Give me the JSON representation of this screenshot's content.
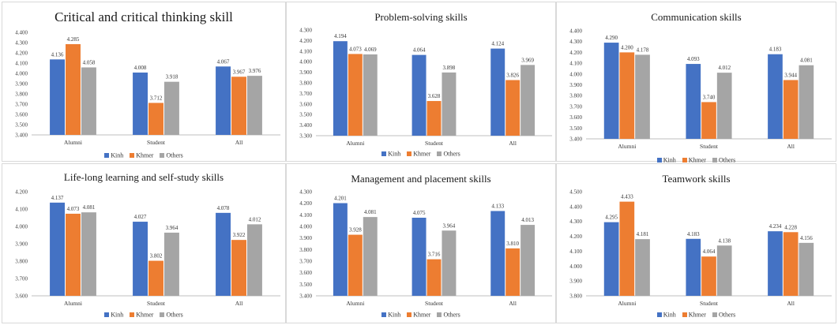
{
  "chart_data": [
    {
      "type": "bar",
      "title": "Critical and critical thinking skill",
      "categories": [
        "Alumni",
        "Student",
        "All"
      ],
      "series": [
        {
          "name": "Kinh",
          "values": [
            4.136,
            4.008,
            4.067
          ],
          "labels": [
            "4.136",
            "4.008",
            "4.067"
          ]
        },
        {
          "name": "Khmer",
          "values": [
            4.285,
            3.712,
            3.967
          ],
          "labels": [
            "4.285",
            "3.712",
            "3.967"
          ]
        },
        {
          "name": "Others",
          "values": [
            4.058,
            3.918,
            3.976
          ],
          "labels": [
            "4.058",
            "3.918",
            "3.976"
          ]
        }
      ],
      "ylim": [
        3.4,
        4.4
      ],
      "yticks": [
        "3.400",
        "3.500",
        "3.600",
        "3.700",
        "3.800",
        "3.900",
        "4.000",
        "4.100",
        "4.200",
        "4.300",
        "4.400"
      ],
      "legend": "bottom",
      "grid": false
    },
    {
      "type": "bar",
      "title": "Problem-solving  skills",
      "categories": [
        "Alumni",
        "Student",
        "All"
      ],
      "series": [
        {
          "name": "Kinh",
          "values": [
            4.194,
            4.064,
            4.124
          ],
          "labels": [
            "4.194",
            "4.064",
            "4.124"
          ]
        },
        {
          "name": "Khmer",
          "values": [
            4.073,
            3.628,
            3.826
          ],
          "labels": [
            "4.073",
            "3.628",
            "3.826"
          ]
        },
        {
          "name": "Others",
          "values": [
            4.069,
            3.898,
            3.969
          ],
          "labels": [
            "4.069",
            "3.898",
            "3.969"
          ]
        }
      ],
      "ylim": [
        3.3,
        4.3
      ],
      "yticks": [
        "3.300",
        "3.400",
        "3.500",
        "3.600",
        "3.700",
        "3.800",
        "3.900",
        "4.000",
        "4.100",
        "4.200",
        "4.300"
      ],
      "legend": "bottom",
      "grid": false
    },
    {
      "type": "bar",
      "title": "Communication  skills",
      "categories": [
        "Alumni",
        "Student",
        "All"
      ],
      "series": [
        {
          "name": "Kinh",
          "values": [
            4.29,
            4.093,
            4.183
          ],
          "labels": [
            "4.290",
            "4.093",
            "4.183"
          ]
        },
        {
          "name": "Khmer",
          "values": [
            4.2,
            3.74,
            3.944
          ],
          "labels": [
            "4.200",
            "3.740",
            "3.944"
          ]
        },
        {
          "name": "Others",
          "values": [
            4.178,
            4.012,
            4.081
          ],
          "labels": [
            "4.178",
            "4.012",
            "4.081"
          ]
        }
      ],
      "ylim": [
        3.4,
        4.4
      ],
      "yticks": [
        "3.400",
        "3.500",
        "3.600",
        "3.700",
        "3.800",
        "3.900",
        "4.000",
        "4.100",
        "4.200",
        "4.300",
        "4.400"
      ],
      "legend": "bottom",
      "grid": false
    },
    {
      "type": "bar",
      "title": "Life-long  learning and self-study skills",
      "categories": [
        "Alumni",
        "Student",
        "All"
      ],
      "series": [
        {
          "name": "Kinh",
          "values": [
            4.137,
            4.027,
            4.078
          ],
          "labels": [
            "4.137",
            "4.027",
            "4.078"
          ]
        },
        {
          "name": "Khmer",
          "values": [
            4.073,
            3.802,
            3.922
          ],
          "labels": [
            "4.073",
            "3.802",
            "3.922"
          ]
        },
        {
          "name": "Others",
          "values": [
            4.081,
            3.964,
            4.012
          ],
          "labels": [
            "4.081",
            "3.964",
            "4.012"
          ]
        }
      ],
      "ylim": [
        3.6,
        4.2
      ],
      "yticks": [
        "3.600",
        "3.700",
        "3.800",
        "3.900",
        "4.000",
        "4.100",
        "4.200"
      ],
      "legend": "bottom",
      "grid": false
    },
    {
      "type": "bar",
      "title": "Management  and placement skills",
      "categories": [
        "Alumni",
        "Student",
        "All"
      ],
      "series": [
        {
          "name": "Kinh",
          "values": [
            4.201,
            4.075,
            4.133
          ],
          "labels": [
            "4.201",
            "4.075",
            "4.133"
          ]
        },
        {
          "name": "Khmer",
          "values": [
            3.928,
            3.716,
            3.81
          ],
          "labels": [
            "3.928",
            "3.716",
            "3.810"
          ]
        },
        {
          "name": "Others",
          "values": [
            4.081,
            3.964,
            4.013
          ],
          "labels": [
            "4.081",
            "3.964",
            "4.013"
          ]
        }
      ],
      "ylim": [
        3.4,
        4.3
      ],
      "yticks": [
        "3.400",
        "3.500",
        "3.600",
        "3.700",
        "3.800",
        "3.900",
        "4.000",
        "4.100",
        "4.200",
        "4.300"
      ],
      "legend": "bottom",
      "grid": false
    },
    {
      "type": "bar",
      "title": "Teamwork  skills",
      "categories": [
        "Alumni",
        "Student",
        "All"
      ],
      "series": [
        {
          "name": "Kinh",
          "values": [
            4.295,
            4.183,
            4.234
          ],
          "labels": [
            "4.295",
            "4.183",
            "4.234"
          ]
        },
        {
          "name": "Khmer",
          "values": [
            4.433,
            4.064,
            4.228
          ],
          "labels": [
            "4.433",
            "4.064",
            "4.228"
          ]
        },
        {
          "name": "Others",
          "values": [
            4.181,
            4.138,
            4.156
          ],
          "labels": [
            "4.181",
            "4.138",
            "4.156"
          ]
        }
      ],
      "ylim": [
        3.8,
        4.5
      ],
      "yticks": [
        "3.800",
        "3.900",
        "4.000",
        "4.100",
        "4.200",
        "4.300",
        "4.400",
        "4.500"
      ],
      "legend": "bottom",
      "grid": false
    }
  ],
  "colors": {
    "Kinh": "#4472c4",
    "Khmer": "#ed7d31",
    "Others": "#a5a5a5"
  }
}
